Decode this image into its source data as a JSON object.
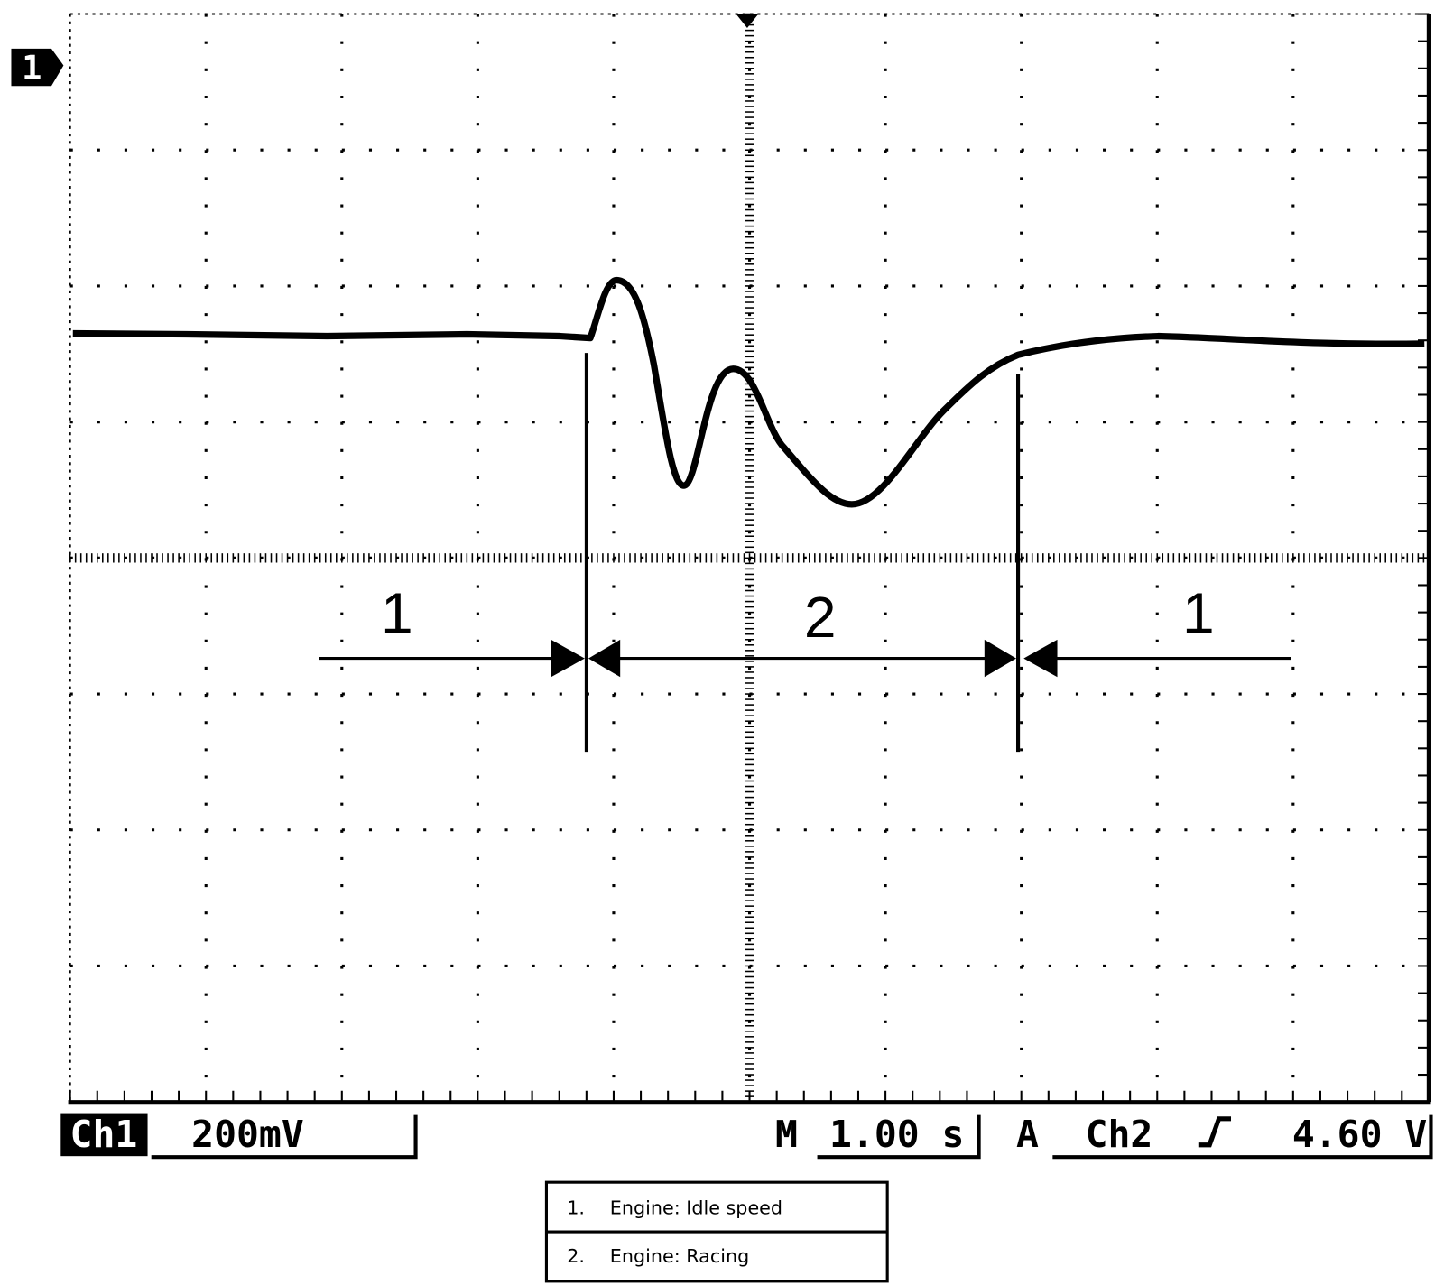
{
  "screen": {
    "channel_marker": "1",
    "region_labels": [
      "1",
      "2",
      "1"
    ]
  },
  "status_bar": {
    "channel": "Ch1",
    "scale": "200mV",
    "time_prefix": "M",
    "timebase": "1.00 s",
    "trigger_prefix": "A",
    "trigger_source": "Ch2",
    "trigger_level": "4.60 V"
  },
  "legend": {
    "rows": [
      [
        "1.",
        "Engine: Idle speed"
      ],
      [
        "2.",
        "Engine: Racing"
      ]
    ]
  }
}
